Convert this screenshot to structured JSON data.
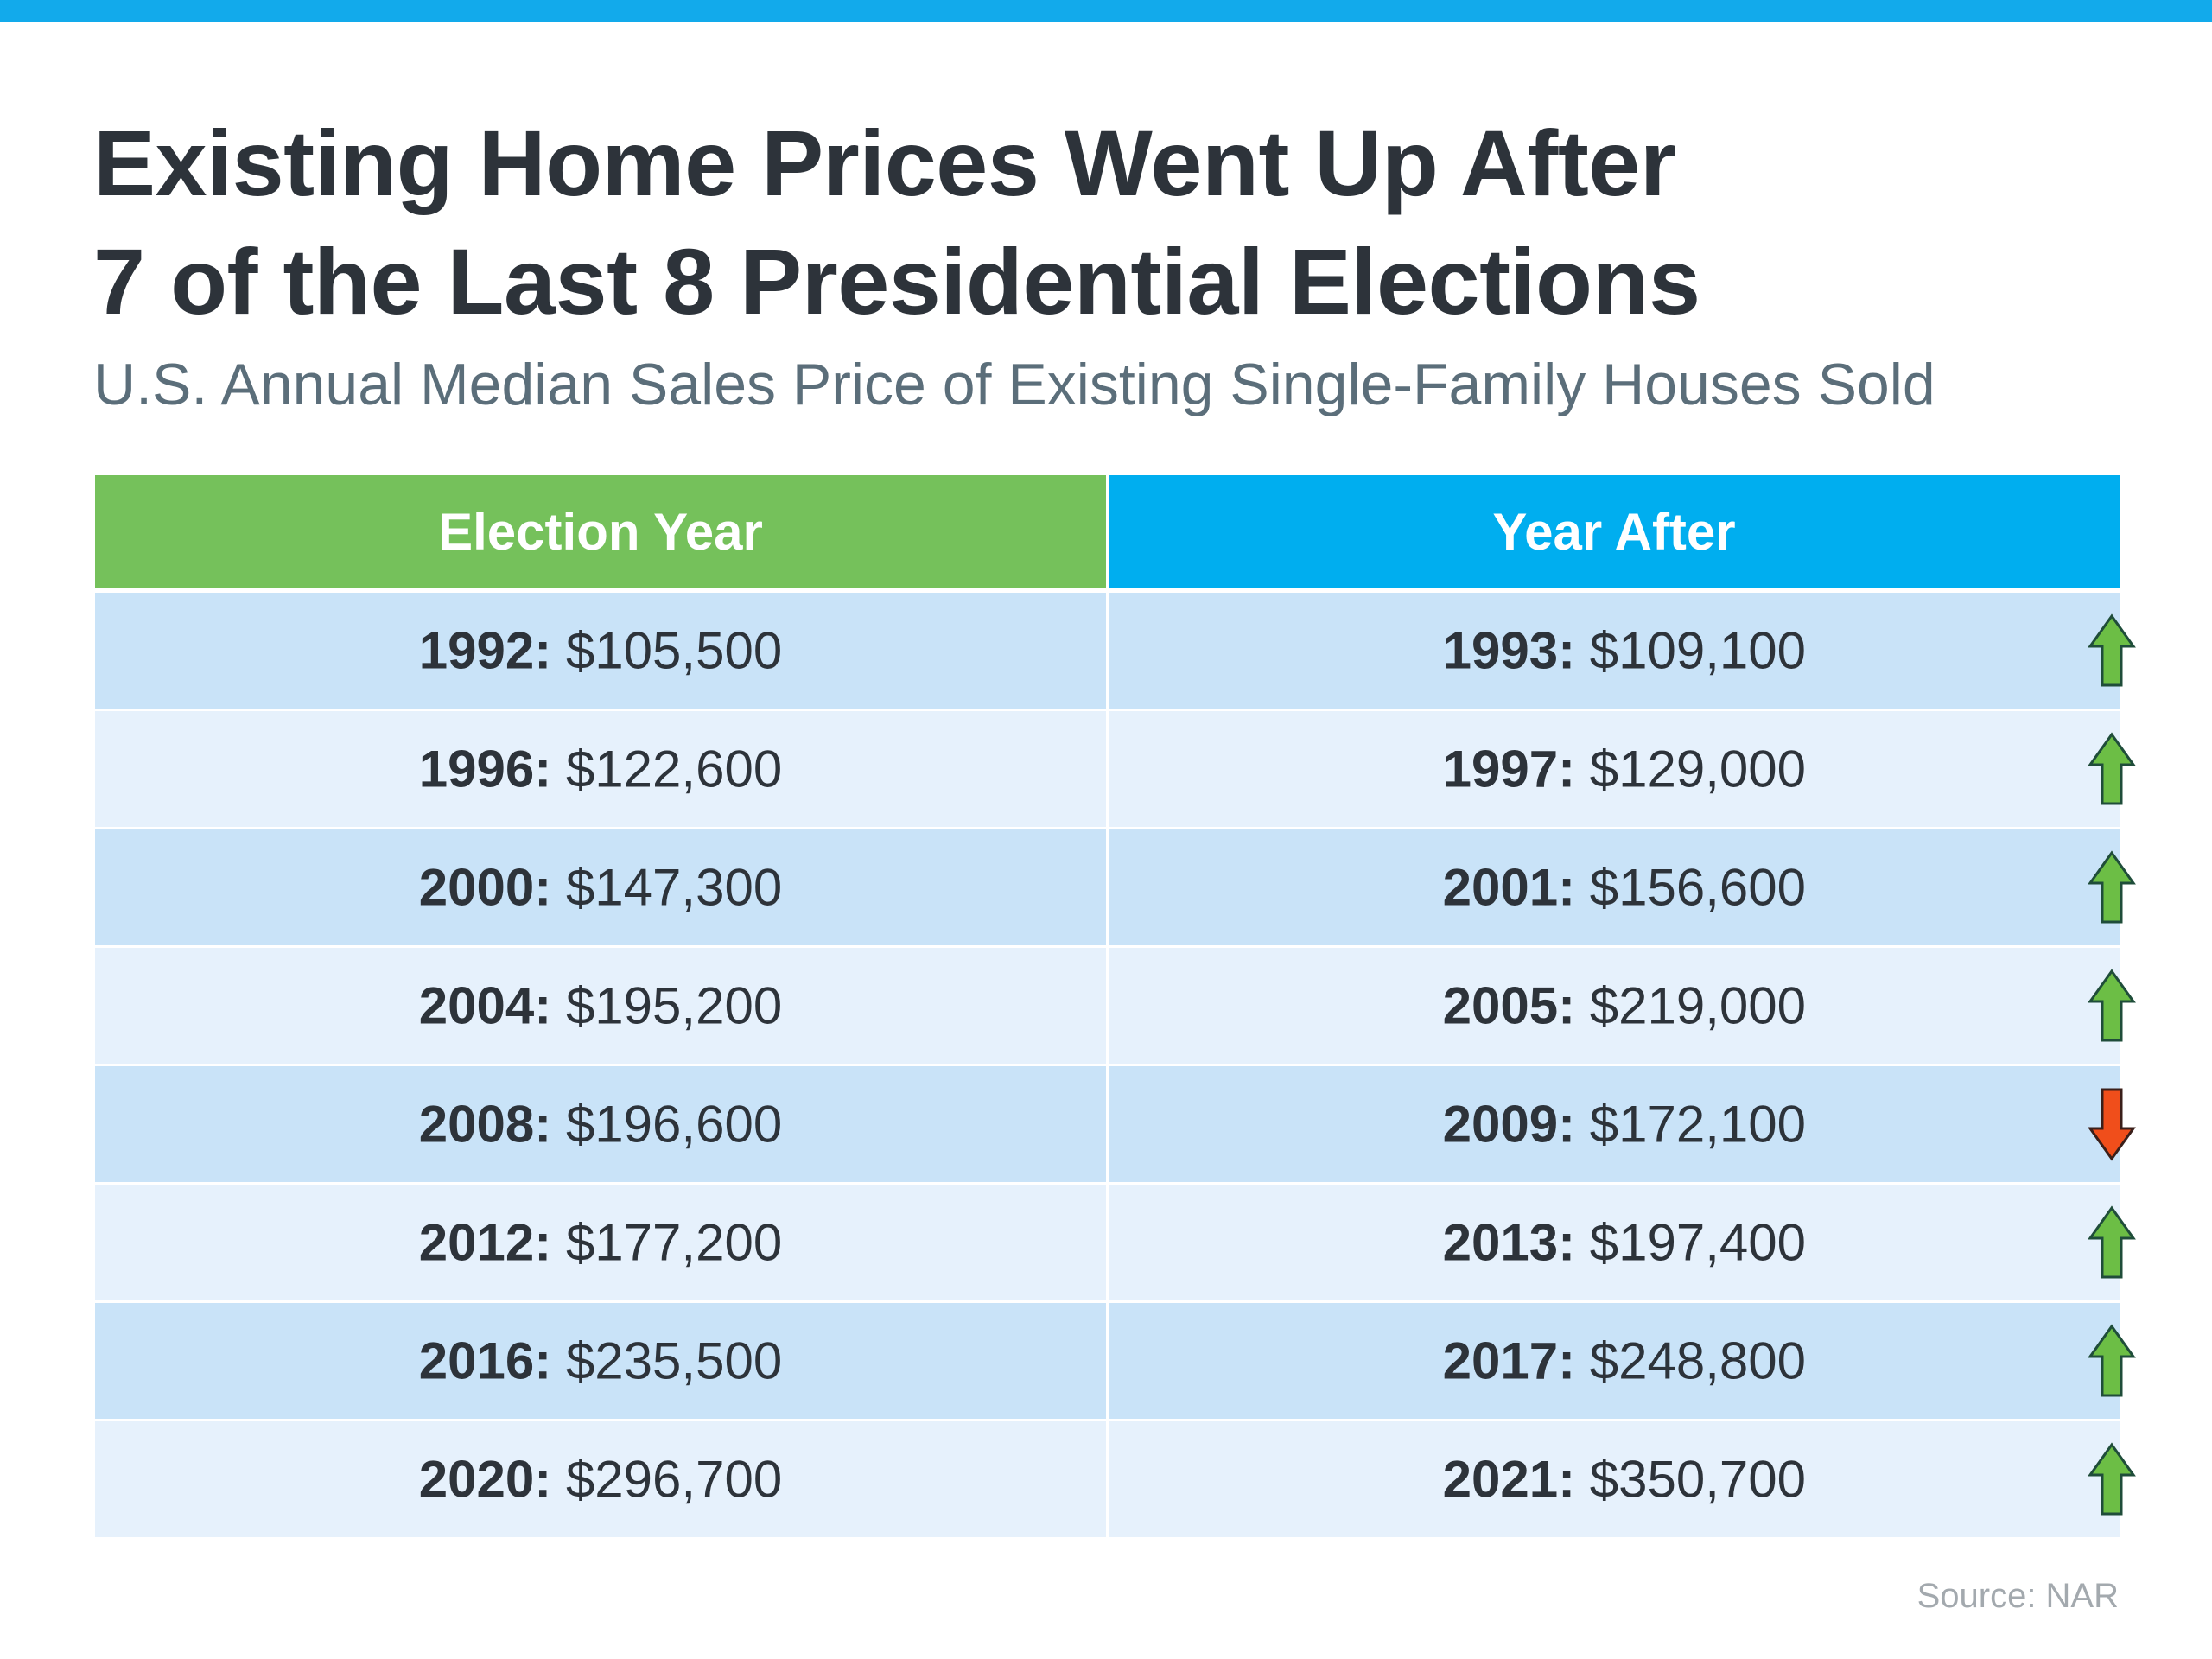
{
  "title_line1": "Existing Home Prices Went Up After",
  "title_line2": "7 of the Last 8 Presidential Elections",
  "subtitle": "U.S. Annual Median Sales Price of Existing Single-Family Houses Sold",
  "source": "Source: NAR",
  "colors": {
    "top_bar": "#12aaeb",
    "header_left": "#75c15b",
    "header_right": "#00aeef",
    "row_dark": "#c9e3f8",
    "row_light": "#e6f1fc",
    "arrow_up": "#6cbe45",
    "arrow_down": "#f04e1b"
  },
  "chart_data": {
    "type": "table",
    "columns": [
      "Election Year",
      "Year After"
    ],
    "rows": [
      {
        "election_year": "1992:",
        "election_price": "$105,500",
        "after_year": "1993:",
        "after_price": "$109,100",
        "direction": "up"
      },
      {
        "election_year": "1996:",
        "election_price": "$122,600",
        "after_year": "1997:",
        "after_price": "$129,000",
        "direction": "up"
      },
      {
        "election_year": "2000:",
        "election_price": "$147,300",
        "after_year": "2001:",
        "after_price": "$156,600",
        "direction": "up"
      },
      {
        "election_year": "2004:",
        "election_price": "$195,200",
        "after_year": "2005:",
        "after_price": "$219,000",
        "direction": "up"
      },
      {
        "election_year": "2008:",
        "election_price": "$196,600",
        "after_year": "2009:",
        "after_price": "$172,100",
        "direction": "down"
      },
      {
        "election_year": "2012:",
        "election_price": "$177,200",
        "after_year": "2013:",
        "after_price": "$197,400",
        "direction": "up"
      },
      {
        "election_year": "2016:",
        "election_price": "$235,500",
        "after_year": "2017:",
        "after_price": "$248,800",
        "direction": "up"
      },
      {
        "election_year": "2020:",
        "election_price": "$296,700",
        "after_year": "2021:",
        "after_price": "$350,700",
        "direction": "up"
      }
    ]
  }
}
